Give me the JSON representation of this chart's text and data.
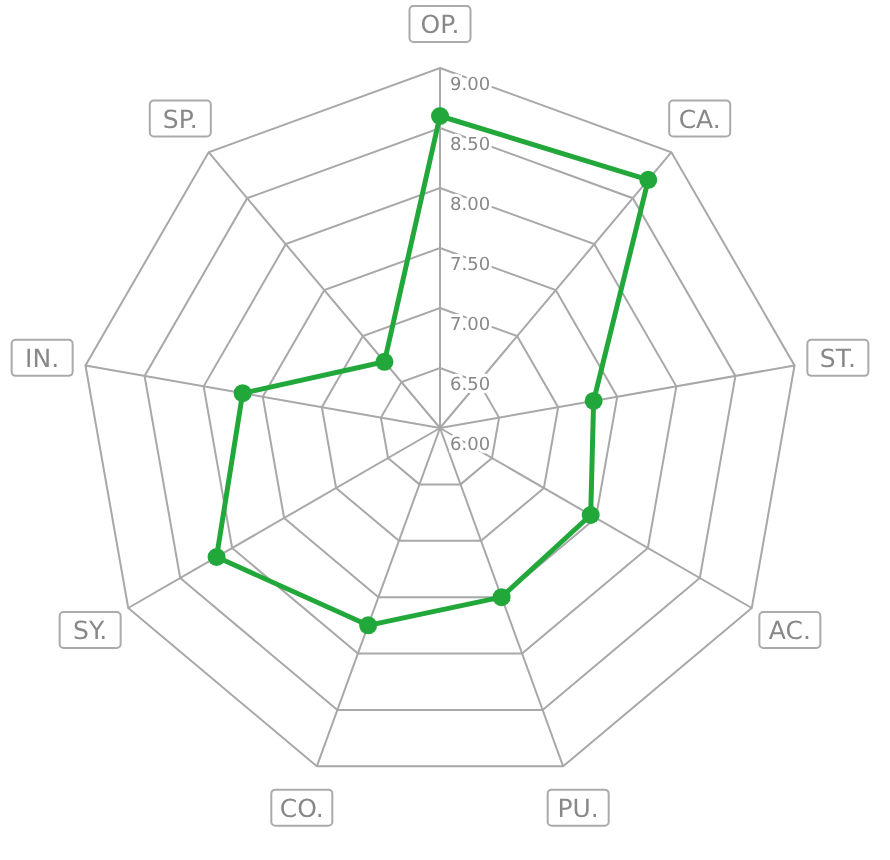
{
  "chart_data": {
    "type": "radar",
    "categories": [
      "OP.",
      "CA.",
      "ST.",
      "AC.",
      "PU.",
      "CO.",
      "SY.",
      "IN.",
      "SP."
    ],
    "ylim": [
      6,
      9
    ],
    "yticks": [
      {
        "value": 6,
        "label": "6.00"
      },
      {
        "value": 6.5,
        "label": "6.50"
      },
      {
        "value": 7,
        "label": "7.00"
      },
      {
        "value": 7.5,
        "label": "7.50"
      },
      {
        "value": 8,
        "label": "8.00"
      },
      {
        "value": 8.5,
        "label": "8.50"
      },
      {
        "value": 9,
        "label": "9.00"
      }
    ],
    "marker": "circle",
    "series": [
      {
        "color": "#22a83a",
        "values": [
          8.6,
          8.7,
          7.3,
          7.45,
          7.5,
          7.75,
          8.15,
          7.67,
          6.72
        ]
      }
    ]
  }
}
